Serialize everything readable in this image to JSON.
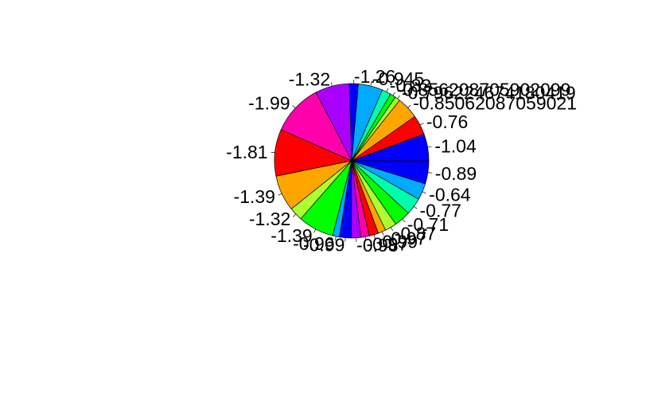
{
  "chart_data": {
    "type": "pie",
    "title": "",
    "labels": [
      "-1.04",
      "-0.76",
      "-0.85062087059021",
      "-0.796224674180419",
      "-0.856208705902099",
      "-0.83",
      "-0.945",
      "-1.26",
      "-1.32",
      "-1.99",
      "-1.81",
      "-1.39",
      "-1.32",
      "-1.39",
      "-0.96",
      "-0.99",
      "-0.98",
      "-0.97",
      "-0.99",
      "-0.97",
      "-0.87",
      "-0.71",
      "-0.77",
      "-0.64",
      "-0.89"
    ],
    "values": [
      1.04,
      0.76,
      0.85,
      0.2,
      0.22,
      0.35,
      0.945,
      0.35,
      1.32,
      1.99,
      1.81,
      1.39,
      0.52,
      1.39,
      0.26,
      0.46,
      0.36,
      0.33,
      0.36,
      0.3,
      0.45,
      0.64,
      0.66,
      0.64,
      0.89
    ],
    "colors": [
      "#0000FF",
      "#FF0000",
      "#FFA500",
      "#ADFF2F",
      "#00FF00",
      "#00FFAA",
      "#00AAFF",
      "#0000FF",
      "#AA00FF",
      "#FF00AA",
      "#FF0000",
      "#FFA500",
      "#ADFF2F",
      "#00FF00",
      "#00AAFF",
      "#0000FF",
      "#AA00FF",
      "#FF00AA",
      "#FF0000",
      "#FFA500",
      "#ADFF2F",
      "#00FF00",
      "#00FFAA",
      "#00AAFF",
      "#0000FF"
    ],
    "start_angle_deg": 0,
    "direction": "counterclockwise"
  }
}
